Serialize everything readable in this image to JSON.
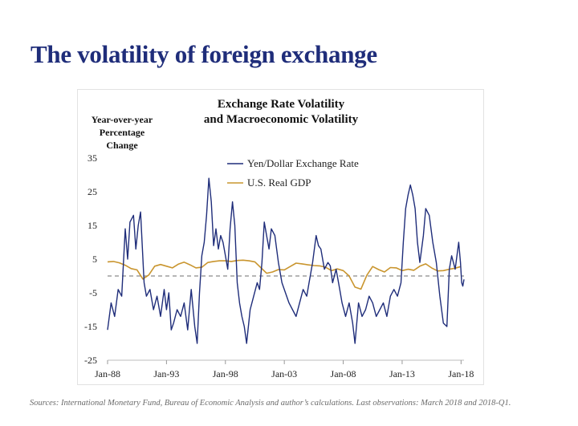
{
  "slide": {
    "title": "The volatility of foreign exchange",
    "sources": "Sources: International Monetary Fund, Bureau of Economic Analysis and author’s calculations. Last observations: March 2018 and 2018-Q1."
  },
  "chart_data": {
    "type": "line",
    "title": "Exchange Rate Volatility and Macroeconomic Volatility",
    "title_lines": [
      "Exchange Rate Volatility",
      "and Macroeconomic Volatility"
    ],
    "ylabel_lines": [
      "Year-over-year",
      "Percentage",
      "Change"
    ],
    "ylim": [
      -25,
      35
    ],
    "yticks": [
      35,
      25,
      15,
      5,
      -5,
      -15,
      -25
    ],
    "xlim": [
      1988.0,
      2018.25
    ],
    "xticks": [
      {
        "x": 1988,
        "label": "Jan-88"
      },
      {
        "x": 1993,
        "label": "Jan-93"
      },
      {
        "x": 1998,
        "label": "Jan-98"
      },
      {
        "x": 2003,
        "label": "Jan-03"
      },
      {
        "x": 2008,
        "label": "Jan-08"
      },
      {
        "x": 2013,
        "label": "Jan-13"
      },
      {
        "x": 2018,
        "label": "Jan-18"
      }
    ],
    "zero_line": {
      "y": 0,
      "style": "dashed"
    },
    "grid": false,
    "legend_position": "top-center",
    "series": [
      {
        "name": "Yen/Dollar Exchange Rate",
        "color": "#1f2d7a",
        "points": [
          [
            1988.0,
            -16
          ],
          [
            1988.3,
            -8
          ],
          [
            1988.6,
            -12
          ],
          [
            1988.9,
            -4
          ],
          [
            1989.2,
            -6
          ],
          [
            1989.5,
            14
          ],
          [
            1989.7,
            5
          ],
          [
            1989.9,
            16
          ],
          [
            1990.2,
            18
          ],
          [
            1990.4,
            8
          ],
          [
            1990.6,
            15
          ],
          [
            1990.8,
            19
          ],
          [
            1991.1,
            -2
          ],
          [
            1991.3,
            -6
          ],
          [
            1991.6,
            -4
          ],
          [
            1991.9,
            -10
          ],
          [
            1992.2,
            -6
          ],
          [
            1992.5,
            -12
          ],
          [
            1992.8,
            -4
          ],
          [
            1993.0,
            -10
          ],
          [
            1993.2,
            -5
          ],
          [
            1993.4,
            -16
          ],
          [
            1993.6,
            -14
          ],
          [
            1993.9,
            -10
          ],
          [
            1994.2,
            -12
          ],
          [
            1994.5,
            -8
          ],
          [
            1994.8,
            -16
          ],
          [
            1995.1,
            -4
          ],
          [
            1995.4,
            -15
          ],
          [
            1995.6,
            -20
          ],
          [
            1995.8,
            -5
          ],
          [
            1996.0,
            6
          ],
          [
            1996.2,
            10
          ],
          [
            1996.4,
            18
          ],
          [
            1996.6,
            29
          ],
          [
            1996.8,
            22
          ],
          [
            1997.0,
            9
          ],
          [
            1997.2,
            14
          ],
          [
            1997.4,
            8
          ],
          [
            1997.6,
            12
          ],
          [
            1997.8,
            10
          ],
          [
            1998.0,
            6
          ],
          [
            1998.2,
            2
          ],
          [
            1998.4,
            14
          ],
          [
            1998.6,
            22
          ],
          [
            1998.8,
            15
          ],
          [
            1999.0,
            -2
          ],
          [
            1999.2,
            -8
          ],
          [
            1999.4,
            -12
          ],
          [
            1999.6,
            -15
          ],
          [
            1999.8,
            -20
          ],
          [
            2000.1,
            -10
          ],
          [
            2000.4,
            -6
          ],
          [
            2000.7,
            -2
          ],
          [
            2000.9,
            -4
          ],
          [
            2001.1,
            4
          ],
          [
            2001.3,
            16
          ],
          [
            2001.5,
            12
          ],
          [
            2001.7,
            8
          ],
          [
            2001.9,
            14
          ],
          [
            2002.2,
            12
          ],
          [
            2002.5,
            4
          ],
          [
            2002.8,
            -2
          ],
          [
            2003.1,
            -5
          ],
          [
            2003.4,
            -8
          ],
          [
            2003.7,
            -10
          ],
          [
            2004.0,
            -12
          ],
          [
            2004.3,
            -8
          ],
          [
            2004.6,
            -4
          ],
          [
            2004.9,
            -6
          ],
          [
            2005.1,
            -2
          ],
          [
            2005.4,
            4
          ],
          [
            2005.7,
            12
          ],
          [
            2005.9,
            9
          ],
          [
            2006.1,
            8
          ],
          [
            2006.4,
            2
          ],
          [
            2006.7,
            4
          ],
          [
            2006.9,
            3
          ],
          [
            2007.1,
            -2
          ],
          [
            2007.4,
            2
          ],
          [
            2007.7,
            -4
          ],
          [
            2007.9,
            -8
          ],
          [
            2008.2,
            -12
          ],
          [
            2008.5,
            -8
          ],
          [
            2008.8,
            -14
          ],
          [
            2009.0,
            -20
          ],
          [
            2009.3,
            -8
          ],
          [
            2009.6,
            -12
          ],
          [
            2009.9,
            -10
          ],
          [
            2010.2,
            -6
          ],
          [
            2010.5,
            -8
          ],
          [
            2010.8,
            -12
          ],
          [
            2011.1,
            -10
          ],
          [
            2011.4,
            -8
          ],
          [
            2011.7,
            -12
          ],
          [
            2012.0,
            -6
          ],
          [
            2012.3,
            -4
          ],
          [
            2012.6,
            -6
          ],
          [
            2012.9,
            -2
          ],
          [
            2013.1,
            10
          ],
          [
            2013.3,
            20
          ],
          [
            2013.5,
            24
          ],
          [
            2013.7,
            27
          ],
          [
            2013.9,
            24
          ],
          [
            2014.1,
            20
          ],
          [
            2014.3,
            10
          ],
          [
            2014.5,
            4
          ],
          [
            2014.8,
            12
          ],
          [
            2015.0,
            20
          ],
          [
            2015.3,
            18
          ],
          [
            2015.6,
            10
          ],
          [
            2015.9,
            4
          ],
          [
            2016.2,
            -6
          ],
          [
            2016.5,
            -14
          ],
          [
            2016.8,
            -15
          ],
          [
            2017.0,
            2
          ],
          [
            2017.2,
            6
          ],
          [
            2017.5,
            2
          ],
          [
            2017.8,
            10
          ],
          [
            2017.95,
            4
          ],
          [
            2018.05,
            -2
          ],
          [
            2018.15,
            -3
          ],
          [
            2018.25,
            -1
          ]
        ]
      },
      {
        "name": "U.S. Real GDP",
        "color": "#c9952e",
        "points": [
          [
            1988.0,
            4.2
          ],
          [
            1988.5,
            4.3
          ],
          [
            1989.0,
            3.9
          ],
          [
            1989.5,
            3.2
          ],
          [
            1990.0,
            2.2
          ],
          [
            1990.5,
            1.8
          ],
          [
            1991.0,
            -0.9
          ],
          [
            1991.5,
            0.3
          ],
          [
            1992.0,
            2.9
          ],
          [
            1992.5,
            3.4
          ],
          [
            1993.0,
            2.9
          ],
          [
            1993.5,
            2.4
          ],
          [
            1994.0,
            3.5
          ],
          [
            1994.5,
            4.1
          ],
          [
            1995.0,
            3.3
          ],
          [
            1995.5,
            2.4
          ],
          [
            1996.0,
            2.6
          ],
          [
            1996.5,
            4.0
          ],
          [
            1997.0,
            4.3
          ],
          [
            1997.5,
            4.5
          ],
          [
            1998.0,
            4.5
          ],
          [
            1998.5,
            4.3
          ],
          [
            1999.0,
            4.6
          ],
          [
            1999.5,
            4.7
          ],
          [
            2000.0,
            4.5
          ],
          [
            2000.5,
            4.2
          ],
          [
            2001.0,
            2.5
          ],
          [
            2001.5,
            0.8
          ],
          [
            2002.0,
            1.2
          ],
          [
            2002.5,
            1.9
          ],
          [
            2003.0,
            1.8
          ],
          [
            2003.5,
            2.8
          ],
          [
            2004.0,
            3.8
          ],
          [
            2004.5,
            3.6
          ],
          [
            2005.0,
            3.3
          ],
          [
            2005.5,
            3.1
          ],
          [
            2006.0,
            3.0
          ],
          [
            2006.5,
            2.6
          ],
          [
            2007.0,
            1.6
          ],
          [
            2007.5,
            2.1
          ],
          [
            2008.0,
            1.6
          ],
          [
            2008.5,
            0.0
          ],
          [
            2009.0,
            -3.3
          ],
          [
            2009.5,
            -3.9
          ],
          [
            2010.0,
            0.2
          ],
          [
            2010.5,
            2.8
          ],
          [
            2011.0,
            1.9
          ],
          [
            2011.5,
            1.2
          ],
          [
            2012.0,
            2.5
          ],
          [
            2012.5,
            2.4
          ],
          [
            2013.0,
            1.6
          ],
          [
            2013.5,
            2.0
          ],
          [
            2014.0,
            1.7
          ],
          [
            2014.5,
            2.9
          ],
          [
            2015.0,
            3.6
          ],
          [
            2015.5,
            2.4
          ],
          [
            2016.0,
            1.5
          ],
          [
            2016.5,
            1.6
          ],
          [
            2017.0,
            2.0
          ],
          [
            2017.5,
            2.3
          ],
          [
            2018.0,
            2.8
          ]
        ]
      }
    ]
  }
}
